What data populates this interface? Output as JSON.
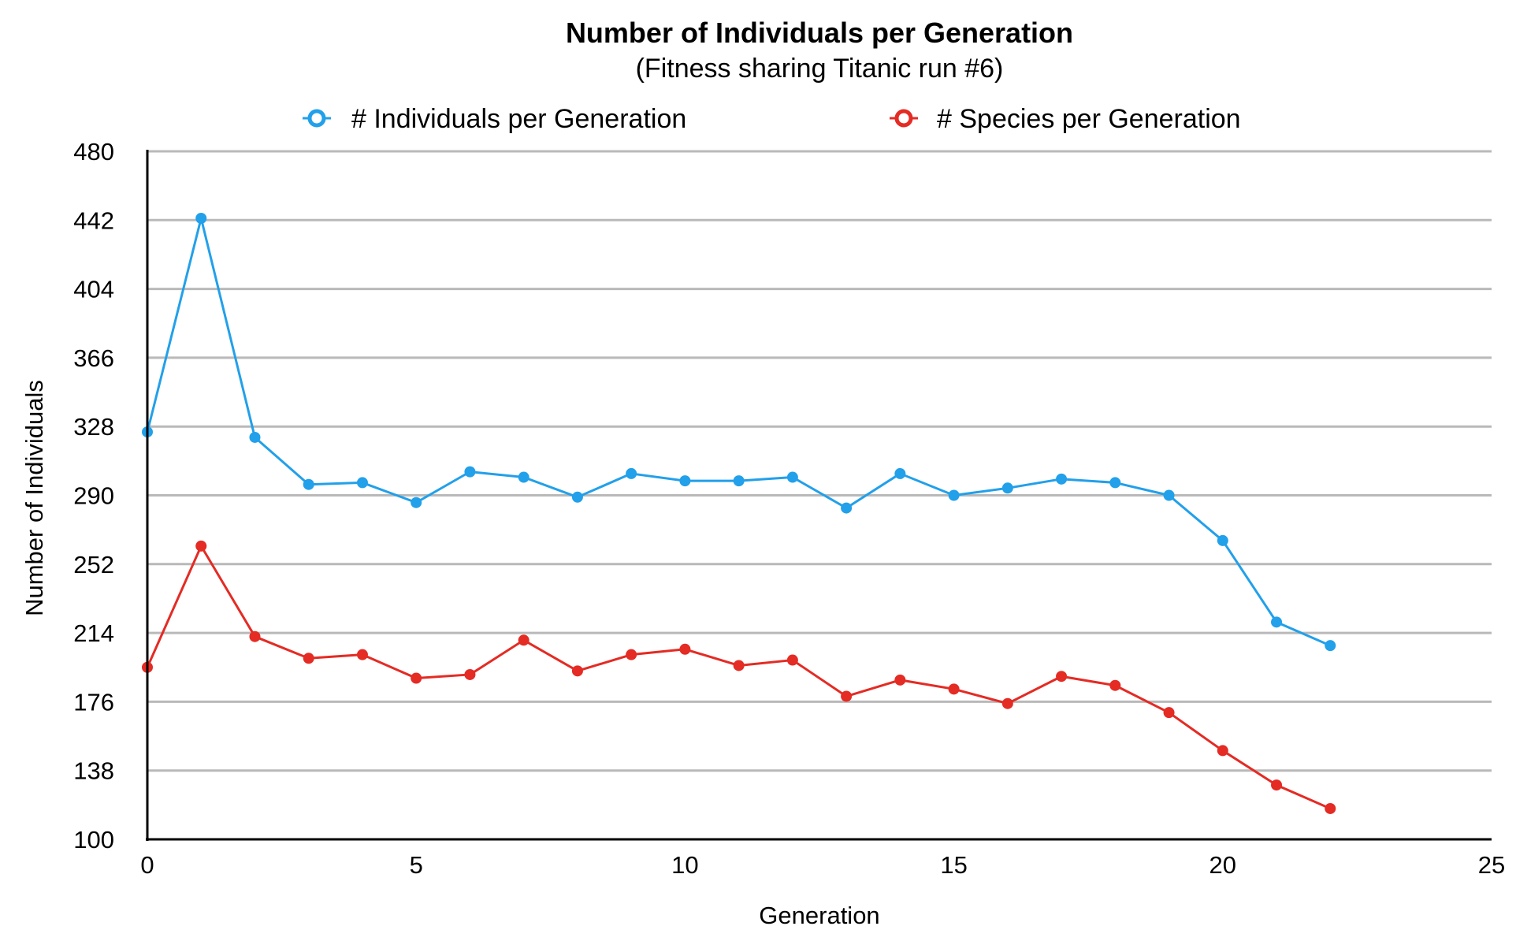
{
  "chart_data": {
    "type": "line",
    "title": "Number of Individuals per Generation",
    "subtitle": "(Fitness sharing Titanic run #6)",
    "xlabel": "Generation",
    "ylabel": "Number of Individuals",
    "xlim": [
      0,
      25
    ],
    "ylim": [
      100,
      480
    ],
    "x_ticks": [
      "0",
      "5",
      "10",
      "15",
      "20",
      "25"
    ],
    "y_ticks": [
      "100",
      "138",
      "176",
      "214",
      "252",
      "290",
      "328",
      "366",
      "404",
      "442",
      "480"
    ],
    "grid": "horizontal",
    "legend_placement": "top",
    "x": [
      0,
      1,
      2,
      3,
      4,
      5,
      6,
      7,
      8,
      9,
      10,
      11,
      12,
      13,
      14,
      15,
      16,
      17,
      18,
      19,
      20,
      21,
      22
    ],
    "series": [
      {
        "name": "# Individuals per Generation",
        "color": "#22a0ea",
        "values": [
          325,
          443,
          322,
          296,
          297,
          286,
          303,
          300,
          289,
          302,
          298,
          298,
          300,
          283,
          302,
          290,
          294,
          299,
          297,
          290,
          265,
          220,
          207
        ]
      },
      {
        "name": "# Species per Generation",
        "color": "#e42b24",
        "values": [
          195,
          262,
          212,
          200,
          202,
          189,
          191,
          210,
          193,
          202,
          205,
          196,
          199,
          179,
          188,
          183,
          175,
          190,
          185,
          170,
          149,
          130,
          117
        ]
      }
    ]
  }
}
